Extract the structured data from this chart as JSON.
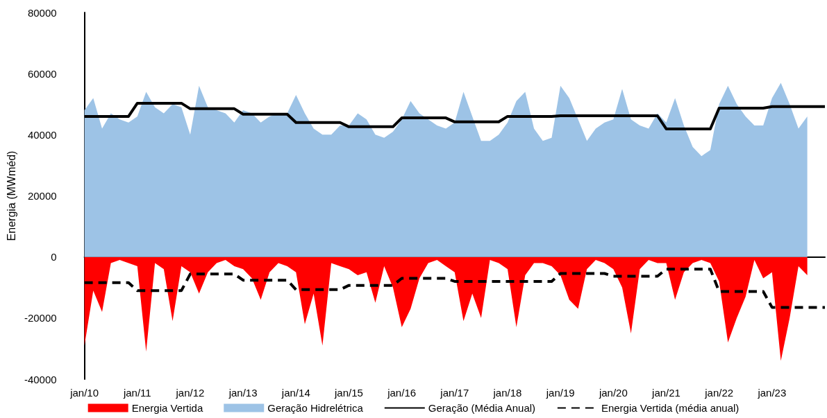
{
  "chart_data": {
    "type": "area",
    "ylabel": "Energia (MWméd)",
    "categories": [
      "jan/10",
      null,
      null,
      null,
      null,
      null,
      "jan/11",
      null,
      null,
      null,
      null,
      null,
      "jan/12",
      null,
      null,
      null,
      null,
      null,
      "jan/13",
      null,
      null,
      null,
      null,
      null,
      "jan/14",
      null,
      null,
      null,
      null,
      null,
      "jan/15",
      null,
      null,
      null,
      null,
      null,
      "jan/16",
      null,
      null,
      null,
      null,
      null,
      "jan/17",
      null,
      null,
      null,
      null,
      null,
      "jan/18",
      null,
      null,
      null,
      null,
      null,
      "jan/19",
      null,
      null,
      null,
      null,
      null,
      "jan/20",
      null,
      null,
      null,
      null,
      null,
      "jan/21",
      null,
      null,
      null,
      null,
      null,
      "jan/22",
      null,
      null,
      null,
      null,
      null,
      "jan/23",
      null,
      null,
      null,
      null,
      null,
      null
    ],
    "series": [
      {
        "name": "Energia Vertida",
        "color": "#ff0000",
        "values": [
          -29000,
          -11000,
          -18000,
          -2000,
          -1000,
          -2000,
          -3000,
          -31000,
          -2000,
          -4000,
          -21000,
          -3000,
          -5000,
          -12000,
          -5000,
          -2000,
          -1000,
          -3000,
          -4000,
          -7000,
          -14000,
          -5000,
          -2000,
          -3000,
          -5000,
          -22000,
          -12000,
          -29000,
          -2000,
          -3000,
          -4000,
          -6000,
          -5000,
          -15000,
          -3000,
          -10000,
          -23000,
          -17000,
          -7000,
          -2000,
          -1000,
          -3000,
          -5000,
          -21000,
          -12000,
          -20000,
          -1000,
          -2000,
          -4000,
          -23000,
          -6000,
          -2000,
          -2000,
          -3000,
          -6000,
          -14000,
          -17000,
          -4000,
          -1000,
          -2000,
          -4000,
          -10000,
          -25000,
          -4000,
          -1000,
          -2000,
          -2000,
          -14000,
          -5000,
          -2000,
          -1000,
          -2000,
          -8000,
          -28000,
          -20000,
          -13000,
          -1000,
          -7000,
          -5000,
          -34000,
          -20000,
          -3000,
          -6000,
          null,
          null
        ]
      },
      {
        "name": "Geração Hidrelétrica",
        "color": "#9dc3e6",
        "values": [
          48000,
          52000,
          42000,
          47000,
          45000,
          44000,
          46000,
          54000,
          49000,
          47000,
          50000,
          49000,
          40000,
          56000,
          49000,
          48000,
          47000,
          44000,
          48000,
          47000,
          44000,
          46000,
          47000,
          47000,
          53000,
          47000,
          42000,
          40000,
          40000,
          43000,
          43000,
          47000,
          45000,
          40000,
          39000,
          41000,
          45000,
          51000,
          47000,
          45000,
          43000,
          42000,
          44000,
          54000,
          46000,
          38000,
          38000,
          40000,
          44000,
          51000,
          54000,
          42000,
          38000,
          39000,
          56000,
          52000,
          45000,
          38000,
          42000,
          44000,
          45000,
          55000,
          45000,
          43000,
          42000,
          47000,
          44000,
          52000,
          43000,
          36000,
          33000,
          35000,
          50000,
          56000,
          50000,
          46000,
          43000,
          43000,
          52000,
          57000,
          50000,
          42000,
          46000,
          null,
          null
        ]
      },
      {
        "name": "Geração (Média Anual)",
        "type": "line",
        "line_style": "solid",
        "color": "#000000",
        "values": [
          46000,
          46000,
          46000,
          46000,
          46000,
          46000,
          50300,
          50300,
          50300,
          50300,
          50300,
          50300,
          48500,
          48500,
          48500,
          48500,
          48500,
          48500,
          46700,
          46700,
          46700,
          46700,
          46700,
          46700,
          44000,
          44000,
          44000,
          44000,
          44000,
          44000,
          42600,
          42600,
          42600,
          42600,
          42600,
          42600,
          45500,
          45500,
          45500,
          45500,
          45500,
          45500,
          44200,
          44200,
          44200,
          44200,
          44200,
          44200,
          46000,
          46000,
          46000,
          46000,
          46000,
          46000,
          46200,
          46200,
          46200,
          46200,
          46200,
          46200,
          46200,
          46200,
          46200,
          46200,
          46200,
          46200,
          41900,
          41900,
          41900,
          41900,
          41900,
          41900,
          48700,
          48700,
          48700,
          48700,
          48700,
          48700,
          49200,
          49200,
          49200,
          49200,
          49200,
          49200,
          49200
        ]
      },
      {
        "name": "Energia Vertida (média anual)",
        "type": "line",
        "line_style": "dashed",
        "color": "#000000",
        "values": [
          -8400,
          -8400,
          -8400,
          -8400,
          -8400,
          -8400,
          -11000,
          -11000,
          -11000,
          -11000,
          -11000,
          -11000,
          -5600,
          -5600,
          -5600,
          -5600,
          -5600,
          -5600,
          -7600,
          -7600,
          -7600,
          -7600,
          -7600,
          -7600,
          -10700,
          -10700,
          -10700,
          -10700,
          -10700,
          -10700,
          -9300,
          -9300,
          -9300,
          -9300,
          -9300,
          -9300,
          -7000,
          -7000,
          -7000,
          -7000,
          -7000,
          -7000,
          -8000,
          -8000,
          -8000,
          -8000,
          -8000,
          -8000,
          -8000,
          -8000,
          -8000,
          -8000,
          -8000,
          -8000,
          -5400,
          -5400,
          -5400,
          -5400,
          -5400,
          -5400,
          -6300,
          -6300,
          -6300,
          -6300,
          -6300,
          -6300,
          -4000,
          -4000,
          -4000,
          -4000,
          -4000,
          -4000,
          -11300,
          -11300,
          -11300,
          -11300,
          -11300,
          -11300,
          -16500,
          -16500,
          -16500,
          -16500,
          -16500,
          -16500,
          -16500
        ]
      }
    ],
    "ylim": [
      -40000,
      80000
    ],
    "yticks": [
      -40000,
      -20000,
      0,
      20000,
      40000,
      60000,
      80000
    ],
    "legend": "bottom",
    "marker": "none"
  }
}
